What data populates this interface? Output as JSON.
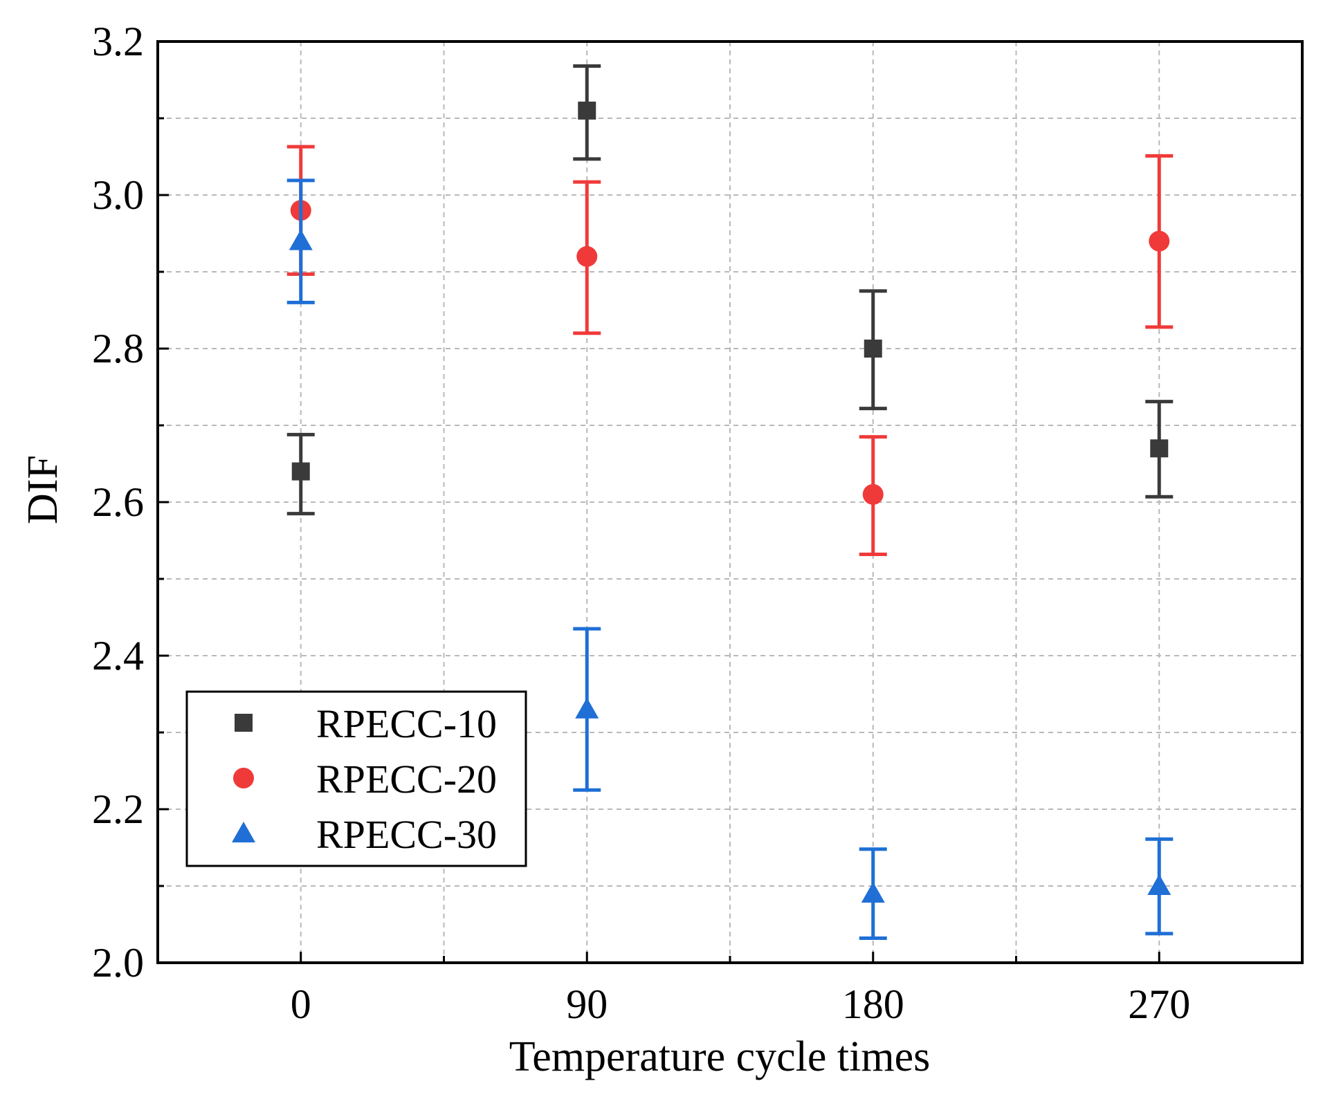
{
  "chart_data": {
    "type": "scatter",
    "title": "",
    "xlabel": "Temperature cycle times",
    "ylabel": "DIF",
    "categories": [
      "0",
      "90",
      "180",
      "270"
    ],
    "x": [
      0,
      90,
      180,
      270
    ],
    "ylim": [
      2.0,
      3.2
    ],
    "yticks": [
      "2.0",
      "2.2",
      "2.4",
      "2.6",
      "2.8",
      "3.0",
      "3.2"
    ],
    "grid": true,
    "legend_position": "bottom-left",
    "series": [
      {
        "name": "RPECC-10",
        "color": "#3a3a3a",
        "marker": "square",
        "values": [
          2.64,
          3.11,
          2.8,
          2.67
        ],
        "error_low": [
          2.585,
          3.047,
          2.722,
          2.607
        ],
        "error_high": [
          2.688,
          3.168,
          2.875,
          2.731
        ]
      },
      {
        "name": "RPECC-20",
        "color": "#f03a3a",
        "marker": "circle",
        "values": [
          2.98,
          2.92,
          2.61,
          2.94
        ],
        "error_low": [
          2.897,
          2.82,
          2.532,
          2.828
        ],
        "error_high": [
          3.063,
          3.017,
          2.685,
          3.051
        ]
      },
      {
        "name": "RPECC-30",
        "color": "#1f6fd6",
        "marker": "triangle",
        "values": [
          2.94,
          2.33,
          2.09,
          2.1
        ],
        "error_low": [
          2.86,
          2.225,
          2.032,
          2.038
        ],
        "error_high": [
          3.019,
          2.435,
          2.148,
          2.161
        ]
      }
    ]
  }
}
